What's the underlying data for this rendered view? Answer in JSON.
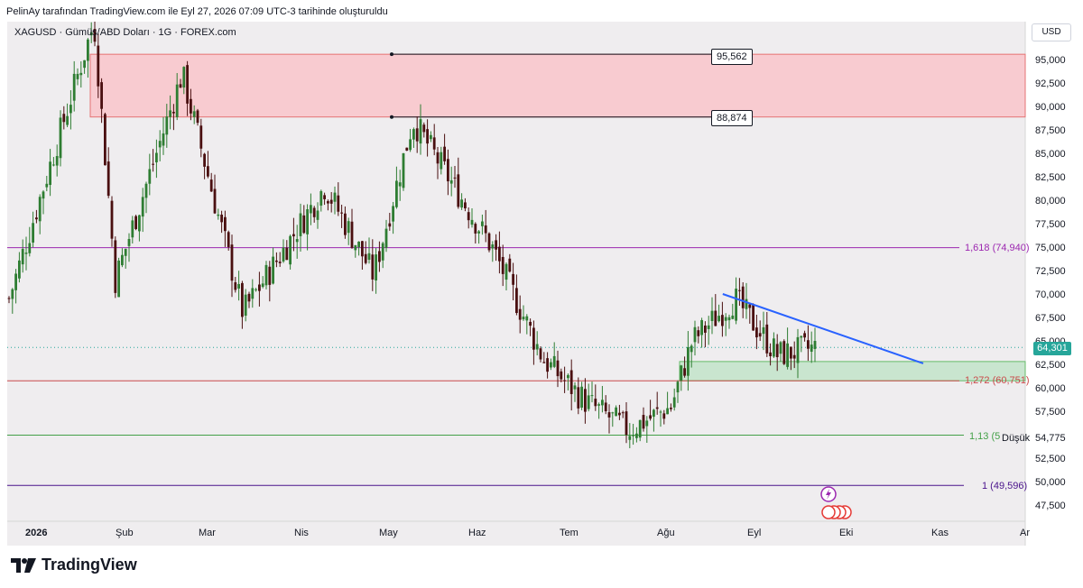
{
  "caption": "PelinAy tarafından TradingView.com ile Eyl 27, 2026 07:09 UTC-3 tarihinde oluşturuldu",
  "symbol_info": "XAGUSD · Gümüş/ABD Doları · 1G · FOREX.com",
  "currency": "USD",
  "brand": "TradingView",
  "last_price": "64,301",
  "low_label": "Düşük",
  "low_value": "54,775",
  "colors": {
    "up": "#2e7d32",
    "down": "#4a0f10",
    "zone": "#f8cbd0",
    "trend": "#2962ff",
    "support_zone": "#c9e5cf"
  },
  "levels": {
    "resistance_top": "95,562",
    "resistance_bottom": "88,874"
  },
  "fib": [
    {
      "label": "1,618 (74,940)",
      "value": 74.94,
      "color": "#9c27b0"
    },
    {
      "label": "1,272 (60,751)",
      "value": 60.751,
      "color": "#c94a4a"
    },
    {
      "label": "1,13 (5",
      "value": 54.95,
      "color": "#43a047"
    },
    {
      "label": "1 (49,596)",
      "value": 49.596,
      "color": "#4a148c"
    }
  ],
  "chart_data": {
    "type": "candlestick",
    "title": "XAGUSD · Gümüş/ABD Doları · 1G · FOREX.com",
    "ylim": [
      45.5,
      100.5
    ],
    "y_ticks": [
      "95,000",
      "92,500",
      "90,000",
      "87,500",
      "85,000",
      "82,500",
      "80,000",
      "77,500",
      "75,000",
      "72,500",
      "70,000",
      "67,500",
      "65,000",
      "62,500",
      "60,000",
      "57,500",
      "52,500",
      "50,000",
      "47,500"
    ],
    "x_ticks": [
      "2026",
      "Şub",
      "Mar",
      "Nis",
      "May",
      "Haz",
      "Tem",
      "Ağu",
      "Eyl",
      "Eki",
      "Kas",
      "Ar"
    ],
    "key_points": [
      {
        "date": "2026-01-01",
        "close": 69.5
      },
      {
        "date": "2026-01-29",
        "close": 99.0
      },
      {
        "date": "2026-02-05",
        "close": 71.5
      },
      {
        "date": "2026-02-27",
        "close": 93.5
      },
      {
        "date": "2026-03-19",
        "close": 68.0
      },
      {
        "date": "2026-04-15",
        "close": 81.5
      },
      {
        "date": "2026-05-01",
        "close": 72.0
      },
      {
        "date": "2026-05-14",
        "close": 88.5
      },
      {
        "date": "2026-06-09",
        "close": 75.0
      },
      {
        "date": "2026-06-26",
        "close": 63.0
      },
      {
        "date": "2026-07-10",
        "close": 58.5
      },
      {
        "date": "2026-07-24",
        "close": 55.5
      },
      {
        "date": "2026-08-07",
        "close": 58.0
      },
      {
        "date": "2026-08-14",
        "close": 65.0
      },
      {
        "date": "2026-08-28",
        "close": 69.5
      },
      {
        "date": "2026-09-11",
        "close": 63.5
      },
      {
        "date": "2026-09-24",
        "close": 64.301
      }
    ],
    "trendline": {
      "from": {
        "date": "2026-08-24",
        "value": 70.0
      },
      "to": {
        "date": "2026-10-29",
        "value": 62.6
      }
    },
    "resistance_zone": [
      88.874,
      95.562
    ],
    "support_zone": [
      60.751,
      62.8
    ]
  }
}
